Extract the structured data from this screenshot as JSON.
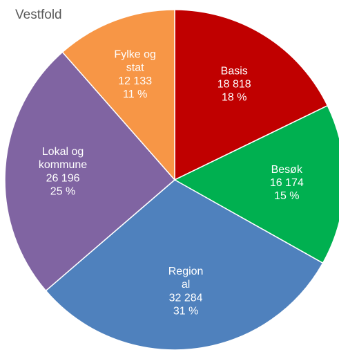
{
  "chart_data": {
    "type": "pie",
    "title": "Vestfold",
    "categories": [
      "Basis",
      "Besøk",
      "Regional",
      "Lokal og kommune",
      "Fylke og stat"
    ],
    "values": [
      18818,
      16174,
      32284,
      26196,
      12133
    ],
    "value_labels": [
      "18 818",
      "16 174",
      "32 284",
      "26 196",
      "12 133"
    ],
    "percentages": [
      18,
      15,
      31,
      25,
      11
    ],
    "percentage_labels": [
      "18 %",
      "15 %",
      "31 %",
      "25 %",
      "11 %"
    ],
    "colors": [
      "#c00000",
      "#00b050",
      "#4f81bd",
      "#8064a2",
      "#f79646"
    ]
  }
}
